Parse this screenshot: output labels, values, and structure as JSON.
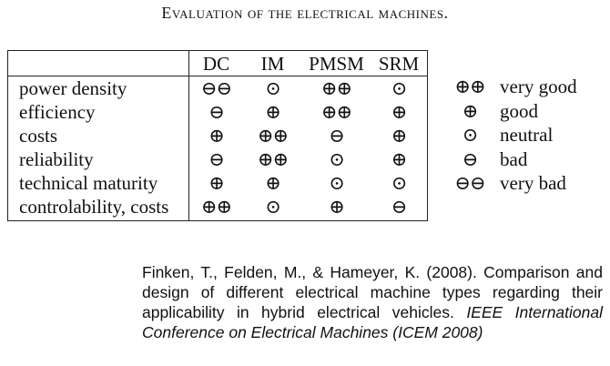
{
  "caption": "Evaluation of the electrical machines.",
  "table": {
    "columns": [
      "DC",
      "IM",
      "PMSM",
      "SRM"
    ],
    "rows": [
      {
        "label": "power density",
        "values": [
          "⊖⊖",
          "⊙",
          "⊕⊕",
          "⊙"
        ]
      },
      {
        "label": "efficiency",
        "values": [
          "⊖",
          "⊕",
          "⊕⊕",
          "⊕"
        ]
      },
      {
        "label": "costs",
        "values": [
          "⊕",
          "⊕⊕",
          "⊖",
          "⊕"
        ]
      },
      {
        "label": "reliability",
        "values": [
          "⊖",
          "⊕⊕",
          "⊙",
          "⊕"
        ]
      },
      {
        "label": "technical maturity",
        "values": [
          "⊕",
          "⊕",
          "⊙",
          "⊙"
        ]
      },
      {
        "label": "controlability, costs",
        "values": [
          "⊕⊕",
          "⊙",
          "⊕",
          "⊖"
        ]
      }
    ]
  },
  "legend": [
    {
      "symbol": "⊕⊕",
      "label": "very good"
    },
    {
      "symbol": "⊕",
      "label": "good"
    },
    {
      "symbol": "⊙",
      "label": "neutral"
    },
    {
      "symbol": "⊖",
      "label": "bad"
    },
    {
      "symbol": "⊖⊖",
      "label": "very bad"
    }
  ],
  "citation": {
    "authors_text": "Finken, T., Felden, M., & Hameyer, K. (2008). Comparison and design of different electrical machine types regarding their applicability in hybrid electrical vehicles.",
    "venue": "IEEE International Conference on Electrical Machines (ICEM 2008)"
  }
}
